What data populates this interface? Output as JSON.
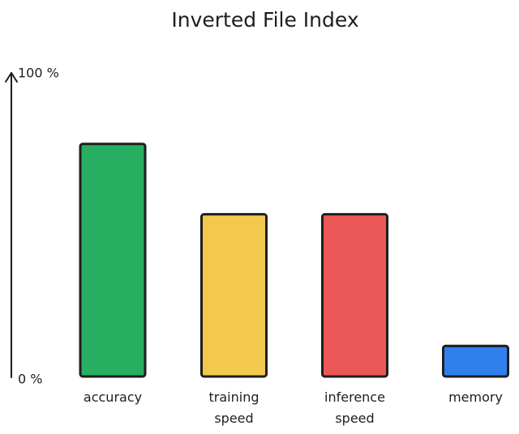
{
  "chart_data": {
    "type": "bar",
    "title": "Inverted File Index",
    "categories": [
      "accuracy",
      "training speed",
      "inference speed",
      "memory"
    ],
    "values": [
      76,
      53,
      53,
      10
    ],
    "colors": [
      "#27ae60",
      "#f2c94c",
      "#eb5757",
      "#2f80ed"
    ],
    "ylim": [
      0,
      100
    ],
    "yticks": [
      {
        "value": 0,
        "label": "0 %"
      },
      {
        "value": 100,
        "label": "100 %"
      }
    ],
    "grid": false
  }
}
